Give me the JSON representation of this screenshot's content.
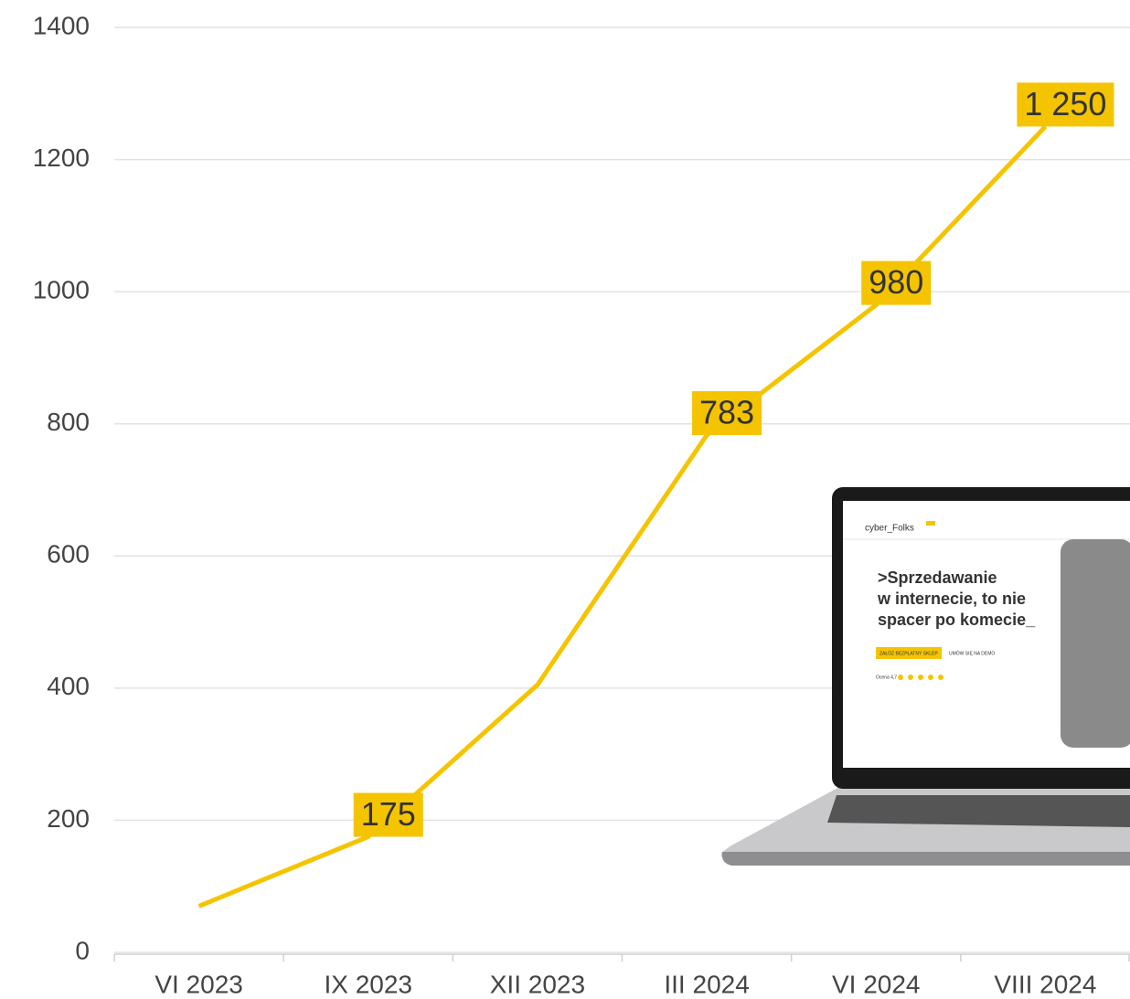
{
  "chart_data": {
    "type": "line",
    "categories": [
      "VI 2023",
      "IX 2023",
      "XII 2023",
      "III 2024",
      "VI 2024",
      "VIII 2024"
    ],
    "values": [
      70,
      175,
      405,
      783,
      980,
      1250
    ],
    "value_labels": [
      null,
      "175",
      null,
      "783",
      "980",
      "1 250"
    ],
    "color": "#f5c400",
    "ylim": [
      0,
      1400
    ],
    "yticks": [
      0,
      200,
      400,
      600,
      800,
      1000,
      1200,
      1400
    ],
    "grid": true
  },
  "laptop_screen": {
    "brand": "cyber_Folks",
    "headline": [
      ">Sprzedawanie",
      "w internecie, to nie",
      "spacer po komecie_"
    ],
    "buttons": [
      "ZAŁÓŻ BEZPŁATNY SKLEP",
      "UMÓW SIĘ NA DEMO"
    ],
    "rating": "Ocena 4,7"
  }
}
